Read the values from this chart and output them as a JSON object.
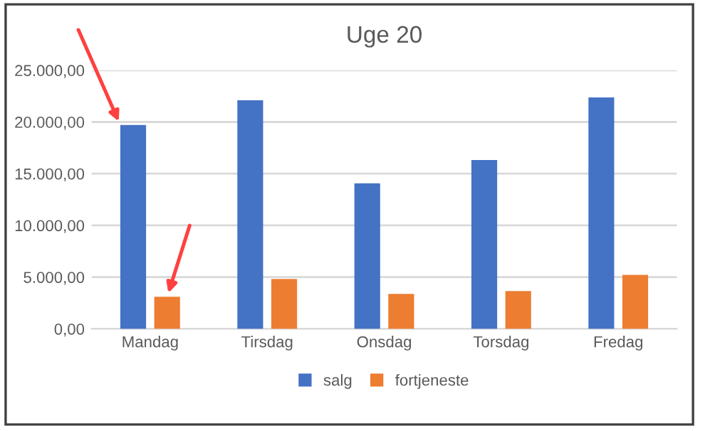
{
  "chart_data": {
    "type": "bar",
    "title": "Uge 20",
    "categories": [
      "Mandag",
      "Tirsdag",
      "Onsdag",
      "Torsdag",
      "Fredag"
    ],
    "series": [
      {
        "name": "salg",
        "color": "#4472c4",
        "values": [
          19700,
          22090,
          14070,
          16320,
          22370
        ]
      },
      {
        "name": "fortjeneste",
        "color": "#ed7d31",
        "values": [
          3100,
          4830,
          3380,
          3660,
          5210
        ]
      }
    ],
    "ylim": [
      0,
      25000
    ],
    "yticks": [
      {
        "value": 0,
        "label": "0,00"
      },
      {
        "value": 5000,
        "label": "5.000,00"
      },
      {
        "value": 10000,
        "label": "10.000,00"
      },
      {
        "value": 15000,
        "label": "15.000,00"
      },
      {
        "value": 20000,
        "label": "20.000,00"
      },
      {
        "value": 25000,
        "label": "25.000,00"
      }
    ],
    "grid": "y",
    "legend": "bottom"
  }
}
